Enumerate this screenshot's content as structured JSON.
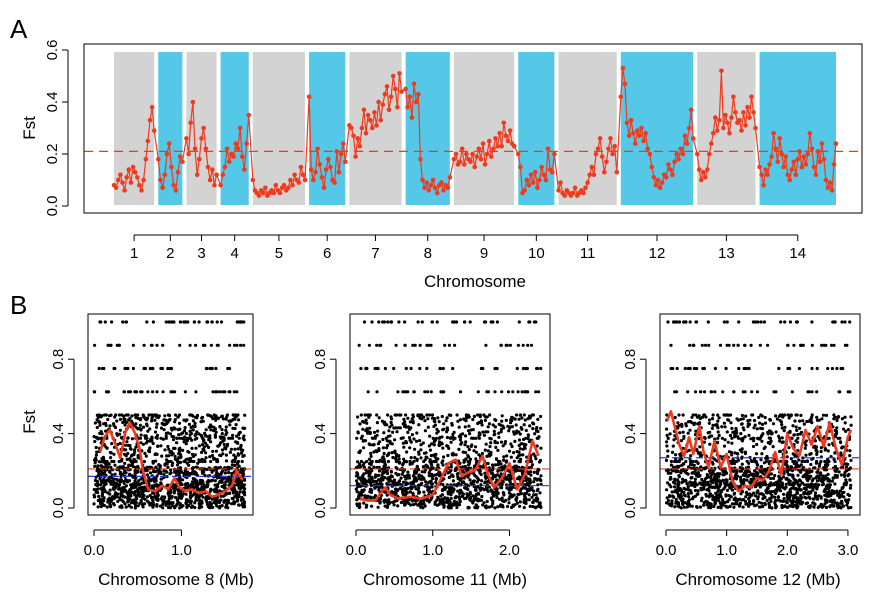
{
  "panel_labels": {
    "a": "A",
    "b": "B"
  },
  "colors": {
    "line": "#f03a1e",
    "threshold": "#f03a1e",
    "blue": "#2a3cdc",
    "grey_band": "#d3d3d3",
    "cyan_band": "#55c8e8",
    "points": "#000000"
  },
  "chart_data": [
    {
      "type": "line",
      "panel": "A",
      "xlabel": "Chromosome",
      "ylabel": "Fst",
      "ylim": [
        0,
        0.6
      ],
      "yticks": [
        "0.0",
        "0.2",
        "0.4",
        "0.6"
      ],
      "grid": false,
      "threshold": 0.21,
      "chromosomes": [
        {
          "label": "1",
          "span": [
            1,
            21
          ],
          "values": [
            0.08,
            0.07,
            0.1,
            0.12,
            0.09,
            0.06,
            0.11,
            0.14,
            0.09,
            0.15,
            0.13,
            0.11,
            0.08,
            0.06,
            0.1,
            0.18,
            0.25,
            0.33,
            0.38,
            0.29
          ]
        },
        {
          "label": "2",
          "span": [
            23,
            35
          ],
          "values": [
            0.18,
            0.1,
            0.07,
            0.12,
            0.2,
            0.24,
            0.15,
            0.08,
            0.06,
            0.13,
            0.19,
            0.17
          ]
        },
        {
          "label": "3",
          "span": [
            37,
            52
          ],
          "values": [
            0.26,
            0.2,
            0.32,
            0.4,
            0.22,
            0.12,
            0.18,
            0.26,
            0.3,
            0.22,
            0.15,
            0.1,
            0.14,
            0.08,
            0.12
          ]
        },
        {
          "label": "4",
          "span": [
            54,
            68
          ],
          "values": [
            0.08,
            0.12,
            0.15,
            0.22,
            0.17,
            0.2,
            0.19,
            0.24,
            0.22,
            0.3,
            0.19,
            0.14,
            0.24,
            0.35
          ]
        },
        {
          "label": "5",
          "span": [
            70,
            96
          ],
          "values": [
            0.1,
            0.06,
            0.05,
            0.04,
            0.06,
            0.05,
            0.07,
            0.04,
            0.05,
            0.06,
            0.05,
            0.08,
            0.06,
            0.05,
            0.07,
            0.08,
            0.06,
            0.07,
            0.1,
            0.08,
            0.12,
            0.1,
            0.09,
            0.15,
            0.12,
            0.1
          ]
        },
        {
          "label": "6",
          "span": [
            98,
            116
          ],
          "values": [
            0.42,
            0.14,
            0.1,
            0.13,
            0.22,
            0.16,
            0.11,
            0.07,
            0.14,
            0.18,
            0.15,
            0.1,
            0.09,
            0.21,
            0.13,
            0.2,
            0.24,
            0.17
          ]
        },
        {
          "label": "7",
          "span": [
            118,
            144
          ],
          "values": [
            0.31,
            0.3,
            0.27,
            0.19,
            0.26,
            0.23,
            0.3,
            0.37,
            0.28,
            0.35,
            0.33,
            0.3,
            0.36,
            0.31,
            0.4,
            0.33,
            0.39,
            0.43,
            0.46,
            0.37,
            0.42,
            0.5,
            0.45,
            0.38,
            0.51,
            0.44
          ]
        },
        {
          "label": "8",
          "span": [
            146,
            168
          ],
          "values": [
            0.45,
            0.38,
            0.42,
            0.34,
            0.47,
            0.4,
            0.43,
            0.18,
            0.1,
            0.07,
            0.09,
            0.06,
            0.08,
            0.1,
            0.07,
            0.05,
            0.08,
            0.09,
            0.06,
            0.08,
            0.07,
            0.11
          ]
        },
        {
          "label": "9",
          "span": [
            170,
            200
          ],
          "values": [
            0.18,
            0.2,
            0.16,
            0.17,
            0.22,
            0.16,
            0.2,
            0.18,
            0.17,
            0.2,
            0.15,
            0.19,
            0.22,
            0.18,
            0.24,
            0.16,
            0.2,
            0.25,
            0.19,
            0.22,
            0.26,
            0.23,
            0.28,
            0.23,
            0.32,
            0.27,
            0.25,
            0.29,
            0.24,
            0.23
          ]
        },
        {
          "label": "10",
          "span": [
            202,
            220
          ],
          "values": [
            0.2,
            0.15,
            0.05,
            0.06,
            0.1,
            0.08,
            0.12,
            0.09,
            0.13,
            0.07,
            0.1,
            0.15,
            0.12,
            0.1,
            0.22,
            0.14,
            0.13,
            0.2
          ]
        },
        {
          "label": "11",
          "span": [
            222,
            251
          ],
          "values": [
            0.06,
            0.09,
            0.05,
            0.04,
            0.06,
            0.05,
            0.04,
            0.05,
            0.07,
            0.04,
            0.05,
            0.06,
            0.05,
            0.07,
            0.09,
            0.12,
            0.15,
            0.12,
            0.2,
            0.22,
            0.26,
            0.19,
            0.13,
            0.17,
            0.22,
            0.26,
            0.2,
            0.23,
            0.13
          ]
        },
        {
          "label": "12",
          "span": [
            253,
            289
          ],
          "values": [
            0.42,
            0.53,
            0.47,
            0.32,
            0.27,
            0.33,
            0.28,
            0.24,
            0.29,
            0.27,
            0.3,
            0.25,
            0.28,
            0.22,
            0.2,
            0.15,
            0.11,
            0.08,
            0.1,
            0.07,
            0.09,
            0.12,
            0.11,
            0.16,
            0.14,
            0.12,
            0.17,
            0.2,
            0.18,
            0.22,
            0.2,
            0.27,
            0.24,
            0.3,
            0.37,
            0.26
          ]
        },
        {
          "label": "13",
          "span": [
            291,
            320
          ],
          "values": [
            0.2,
            0.14,
            0.1,
            0.13,
            0.11,
            0.14,
            0.2,
            0.24,
            0.28,
            0.34,
            0.29,
            0.33,
            0.52,
            0.3,
            0.35,
            0.32,
            0.28,
            0.34,
            0.42,
            0.36,
            0.32,
            0.33,
            0.29,
            0.36,
            0.31,
            0.38,
            0.34,
            0.42,
            0.36,
            0.3
          ]
        },
        {
          "label": "14",
          "span": [
            322,
            360
          ],
          "values": [
            0.15,
            0.12,
            0.08,
            0.14,
            0.12,
            0.16,
            0.19,
            0.28,
            0.22,
            0.17,
            0.26,
            0.2,
            0.15,
            0.19,
            0.12,
            0.1,
            0.14,
            0.17,
            0.12,
            0.18,
            0.21,
            0.15,
            0.19,
            0.16,
            0.2,
            0.28,
            0.22,
            0.15,
            0.12,
            0.21,
            0.17,
            0.24,
            0.18,
            0.1,
            0.07,
            0.09,
            0.06,
            0.16,
            0.24
          ]
        }
      ]
    },
    {
      "type": "scatter",
      "panel": "B",
      "xlabel": "Chromosome 8 (Mb)",
      "ylabel": "Fst",
      "xlim": [
        0,
        1.75
      ],
      "ylim": [
        0,
        1
      ],
      "xticks": [
        "0.0",
        "1.0"
      ],
      "xtick_values": [
        0,
        1
      ],
      "yticks": [
        "0.0",
        "0.4",
        "0.8"
      ],
      "red_threshold": 0.21,
      "blue_threshold": 0.17,
      "smooth": [
        [
          0.07,
          0.3
        ],
        [
          0.12,
          0.38
        ],
        [
          0.18,
          0.42
        ],
        [
          0.24,
          0.35
        ],
        [
          0.3,
          0.27
        ],
        [
          0.36,
          0.41
        ],
        [
          0.41,
          0.46
        ],
        [
          0.47,
          0.4
        ],
        [
          0.52,
          0.32
        ],
        [
          0.56,
          0.2
        ],
        [
          0.62,
          0.1
        ],
        [
          0.7,
          0.09
        ],
        [
          0.78,
          0.12
        ],
        [
          0.85,
          0.1
        ],
        [
          0.92,
          0.16
        ],
        [
          0.98,
          0.11
        ],
        [
          1.05,
          0.09
        ],
        [
          1.12,
          0.1
        ],
        [
          1.2,
          0.08
        ],
        [
          1.28,
          0.09
        ],
        [
          1.35,
          0.06
        ],
        [
          1.42,
          0.07
        ],
        [
          1.5,
          0.09
        ],
        [
          1.58,
          0.12
        ],
        [
          1.63,
          0.2
        ],
        [
          1.7,
          0.15
        ]
      ]
    },
    {
      "type": "scatter",
      "panel": "B",
      "xlabel": "Chromosome 11 (Mb)",
      "ylabel": "",
      "xlim": [
        0,
        2.45
      ],
      "ylim": [
        0,
        1
      ],
      "xticks": [
        "0.0",
        "1.0",
        "2.0"
      ],
      "xtick_values": [
        0,
        1,
        2
      ],
      "yticks": [
        "0.0",
        "0.4",
        "0.8"
      ],
      "red_threshold": 0.21,
      "blue_threshold": 0.12,
      "smooth": [
        [
          0.05,
          0.05
        ],
        [
          0.15,
          0.04
        ],
        [
          0.25,
          0.04
        ],
        [
          0.32,
          0.08
        ],
        [
          0.38,
          0.11
        ],
        [
          0.45,
          0.07
        ],
        [
          0.55,
          0.05
        ],
        [
          0.7,
          0.06
        ],
        [
          0.85,
          0.05
        ],
        [
          1.0,
          0.07
        ],
        [
          1.1,
          0.15
        ],
        [
          1.2,
          0.24
        ],
        [
          1.3,
          0.26
        ],
        [
          1.38,
          0.17
        ],
        [
          1.45,
          0.19
        ],
        [
          1.55,
          0.2
        ],
        [
          1.65,
          0.28
        ],
        [
          1.72,
          0.18
        ],
        [
          1.8,
          0.11
        ],
        [
          1.9,
          0.16
        ],
        [
          2.0,
          0.24
        ],
        [
          2.1,
          0.1
        ],
        [
          2.2,
          0.18
        ],
        [
          2.3,
          0.36
        ],
        [
          2.38,
          0.28
        ]
      ]
    },
    {
      "type": "scatter",
      "panel": "B",
      "xlabel": "Chromosome 12 (Mb)",
      "ylabel": "",
      "xlim": [
        0,
        3.1
      ],
      "ylim": [
        0,
        1
      ],
      "xticks": [
        "0.0",
        "1.0",
        "2.0",
        "3.0"
      ],
      "xtick_values": [
        0,
        1,
        2,
        3
      ],
      "yticks": [
        "0.0",
        "0.4",
        "0.8"
      ],
      "red_threshold": 0.21,
      "blue_threshold": 0.27,
      "smooth": [
        [
          0.02,
          0.47
        ],
        [
          0.08,
          0.52
        ],
        [
          0.15,
          0.43
        ],
        [
          0.22,
          0.34
        ],
        [
          0.3,
          0.28
        ],
        [
          0.38,
          0.38
        ],
        [
          0.45,
          0.29
        ],
        [
          0.55,
          0.44
        ],
        [
          0.62,
          0.3
        ],
        [
          0.7,
          0.22
        ],
        [
          0.8,
          0.36
        ],
        [
          0.9,
          0.22
        ],
        [
          1.0,
          0.29
        ],
        [
          1.1,
          0.14
        ],
        [
          1.2,
          0.09
        ],
        [
          1.3,
          0.12
        ],
        [
          1.4,
          0.11
        ],
        [
          1.5,
          0.16
        ],
        [
          1.6,
          0.15
        ],
        [
          1.7,
          0.2
        ],
        [
          1.8,
          0.3
        ],
        [
          1.9,
          0.18
        ],
        [
          2.0,
          0.4
        ],
        [
          2.1,
          0.32
        ],
        [
          2.2,
          0.28
        ],
        [
          2.3,
          0.42
        ],
        [
          2.4,
          0.34
        ],
        [
          2.5,
          0.44
        ],
        [
          2.6,
          0.33
        ],
        [
          2.7,
          0.46
        ],
        [
          2.8,
          0.32
        ],
        [
          2.9,
          0.23
        ],
        [
          3.0,
          0.38
        ],
        [
          3.05,
          0.42
        ]
      ]
    }
  ]
}
